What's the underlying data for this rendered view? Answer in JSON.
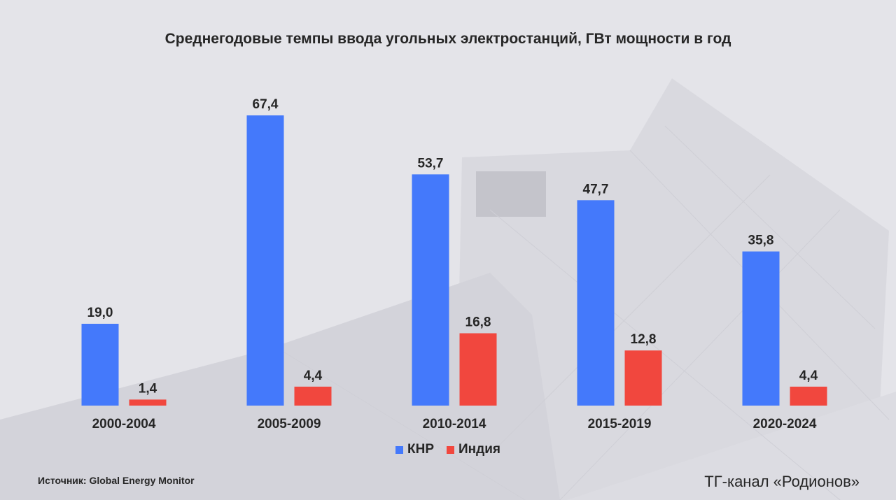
{
  "chart_data": {
    "type": "bar",
    "title": "Среднегодовые темпы ввода угольных электростанций, ГВт мощности в год",
    "categories": [
      "2000-2004",
      "2005-2009",
      "2010-2014",
      "2015-2019",
      "2020-2024"
    ],
    "series": [
      {
        "name": "КНР",
        "values": [
          19.0,
          67.4,
          53.7,
          47.7,
          35.8
        ],
        "labels": [
          "19,0",
          "67,4",
          "53,7",
          "47,7",
          "35,8"
        ],
        "color": "#4479fb"
      },
      {
        "name": "Индия",
        "values": [
          1.4,
          4.4,
          16.8,
          12.8,
          4.4
        ],
        "labels": [
          "1,4",
          "4,4",
          "16,8",
          "12,8",
          "4,4"
        ],
        "color": "#f1473e"
      }
    ],
    "ylim": [
      0,
      70
    ],
    "grid": false,
    "legend": "bottom"
  },
  "footer": {
    "source": "Источник: Global Energy Monitor",
    "brand": "ТГ-канал «Родионов»"
  }
}
